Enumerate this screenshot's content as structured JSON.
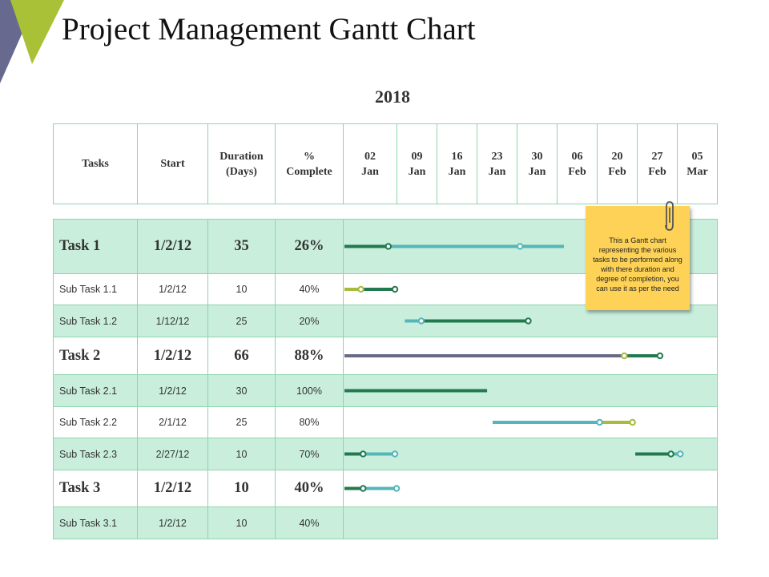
{
  "title": "Project Management Gantt Chart",
  "colors": {
    "dark_green": "#22794f",
    "teal": "#55b5b8",
    "lime": "#a9ba3c",
    "gray": "#686b88",
    "grid": "#8fd4ac",
    "shade": "#c9efdc",
    "note": "#fdd257"
  },
  "chart_data": {
    "type": "gantt",
    "year": "2018",
    "headers": {
      "tasks": "Tasks",
      "start": "Start",
      "duration": "Duration (Days)",
      "duration_l1": "Duration",
      "duration_l2": "(Days)",
      "complete_l1": "%",
      "complete_l2": "Complete"
    },
    "timeline": [
      {
        "l1": "02",
        "l2": "Jan"
      },
      {
        "l1": "09",
        "l2": "Jan"
      },
      {
        "l1": "16",
        "l2": "Jan"
      },
      {
        "l1": "23",
        "l2": "Jan"
      },
      {
        "l1": "30",
        "l2": "Jan"
      },
      {
        "l1": "06",
        "l2": "Feb"
      },
      {
        "l1": "20",
        "l2": "Feb"
      },
      {
        "l1": "27",
        "l2": "Feb"
      },
      {
        "l1": "05",
        "l2": "Mar"
      }
    ],
    "rows": [
      {
        "name": "Task 1",
        "start": "1/2/12",
        "duration": "35",
        "complete": "26%",
        "level": "task"
      },
      {
        "name": "Sub Task 1.1",
        "start": "1/2/12",
        "duration": "10",
        "complete": "40%",
        "level": "sub"
      },
      {
        "name": "Sub Task 1.2",
        "start": "1/12/12",
        "duration": "25",
        "complete": "20%",
        "level": "sub"
      },
      {
        "name": "Task 2",
        "start": "1/2/12",
        "duration": "66",
        "complete": "88%",
        "level": "task"
      },
      {
        "name": "Sub Task 2.1",
        "start": "1/2/12",
        "duration": "30",
        "complete": "100%",
        "level": "sub"
      },
      {
        "name": "Sub Task 2.2",
        "start": "2/1/12",
        "duration": "25",
        "complete": "80%",
        "level": "sub"
      },
      {
        "name": "Sub Task 2.3",
        "start": "2/27/12",
        "duration": "10",
        "complete": "70%",
        "level": "sub"
      },
      {
        "name": "Task 3",
        "start": "1/2/12",
        "duration": "10",
        "complete": "40%",
        "level": "task"
      },
      {
        "name": "Sub Task 3.1",
        "start": "1/2/12",
        "duration": "10",
        "complete": "40%",
        "level": "sub"
      }
    ],
    "bar_segments": [
      {
        "row": 0,
        "color": "dark_green",
        "start_day": 0,
        "end_day": 8
      },
      {
        "row": 0,
        "color": "teal",
        "start_day": 8,
        "end_day": 40
      },
      {
        "row": 1,
        "color": "lime",
        "start_day": 0,
        "end_day": 3
      },
      {
        "row": 1,
        "color": "dark_green",
        "start_day": 3,
        "end_day": 9.2
      },
      {
        "row": 2,
        "color": "teal",
        "start_day": 11,
        "end_day": 14
      },
      {
        "row": 2,
        "color": "dark_green",
        "start_day": 14,
        "end_day": 33.5
      },
      {
        "row": 3,
        "color": "gray",
        "start_day": 0,
        "end_day": 51
      },
      {
        "row": 3,
        "color": "dark_green",
        "start_day": 51,
        "end_day": 57.5
      },
      {
        "row": 4,
        "color": "dark_green",
        "start_day": 0,
        "end_day": 26
      },
      {
        "row": 5,
        "color": "teal",
        "start_day": 27,
        "end_day": 46.5
      },
      {
        "row": 5,
        "color": "lime",
        "start_day": 46.5,
        "end_day": 52.5
      },
      {
        "row": 6,
        "color": "dark_green",
        "start_day": 0,
        "end_day": 3.4
      },
      {
        "row": 6,
        "color": "teal",
        "start_day": 3.4,
        "end_day": 9.2
      },
      {
        "row": 6,
        "color": "dark_green",
        "start_day": 53,
        "end_day": 59.5
      },
      {
        "row": 6,
        "color": "teal",
        "start_day": 59.5,
        "end_day": 61.2
      },
      {
        "row": 7,
        "color": "dark_green",
        "start_day": 0,
        "end_day": 3.4
      },
      {
        "row": 7,
        "color": "teal",
        "start_day": 3.4,
        "end_day": 9.5
      }
    ],
    "markers": [
      {
        "row": 0,
        "day": 8,
        "color": "dark_green"
      },
      {
        "row": 0,
        "day": 32,
        "color": "teal"
      },
      {
        "row": 1,
        "day": 3,
        "color": "lime"
      },
      {
        "row": 1,
        "day": 9.2,
        "color": "dark_green"
      },
      {
        "row": 2,
        "day": 14,
        "color": "teal"
      },
      {
        "row": 2,
        "day": 33.5,
        "color": "dark_green"
      },
      {
        "row": 3,
        "day": 51,
        "color": "lime"
      },
      {
        "row": 3,
        "day": 57.5,
        "color": "dark_green"
      },
      {
        "row": 5,
        "day": 46.5,
        "color": "teal"
      },
      {
        "row": 5,
        "day": 52.5,
        "color": "lime"
      },
      {
        "row": 6,
        "day": 3.4,
        "color": "dark_green"
      },
      {
        "row": 6,
        "day": 9.2,
        "color": "teal"
      },
      {
        "row": 6,
        "day": 59.5,
        "color": "dark_green"
      },
      {
        "row": 6,
        "day": 61.2,
        "color": "teal"
      },
      {
        "row": 7,
        "day": 3.4,
        "color": "dark_green"
      },
      {
        "row": 7,
        "day": 9.5,
        "color": "teal"
      }
    ]
  },
  "note": {
    "text": "This a Gantt chart representing the various tasks to be performed along with there duration and degree of completion, you can use it as per the need"
  }
}
